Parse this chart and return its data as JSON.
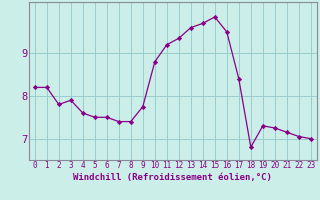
{
  "x": [
    0,
    1,
    2,
    3,
    4,
    5,
    6,
    7,
    8,
    9,
    10,
    11,
    12,
    13,
    14,
    15,
    16,
    17,
    18,
    19,
    20,
    21,
    22,
    23
  ],
  "y": [
    8.2,
    8.2,
    7.8,
    7.9,
    7.6,
    7.5,
    7.5,
    7.4,
    7.4,
    7.75,
    8.8,
    9.2,
    9.35,
    9.6,
    9.7,
    9.85,
    9.5,
    8.4,
    6.8,
    7.3,
    7.25,
    7.15,
    7.05,
    7.0
  ],
  "line_color": "#880088",
  "marker": "D",
  "marker_size": 2.2,
  "bg_color": "#cceee8",
  "grid_color": "#99cccc",
  "xlabel": "Windchill (Refroidissement éolien,°C)",
  "xlabel_color": "#880088",
  "tick_color": "#880088",
  "spine_color": "#888899",
  "yticks": [
    7,
    8,
    9
  ],
  "ylim": [
    6.5,
    10.2
  ],
  "xlim": [
    -0.5,
    23.5
  ],
  "xticks": [
    0,
    1,
    2,
    3,
    4,
    5,
    6,
    7,
    8,
    9,
    10,
    11,
    12,
    13,
    14,
    15,
    16,
    17,
    18,
    19,
    20,
    21,
    22,
    23
  ],
  "xtick_labels": [
    "0",
    "1",
    "2",
    "3",
    "4",
    "5",
    "6",
    "7",
    "8",
    "9",
    "10",
    "11",
    "12",
    "13",
    "14",
    "15",
    "16",
    "17",
    "18",
    "19",
    "20",
    "21",
    "22",
    "23"
  ],
  "xlabel_fontsize": 6.5,
  "xtick_fontsize": 5.5,
  "ytick_fontsize": 7.5
}
